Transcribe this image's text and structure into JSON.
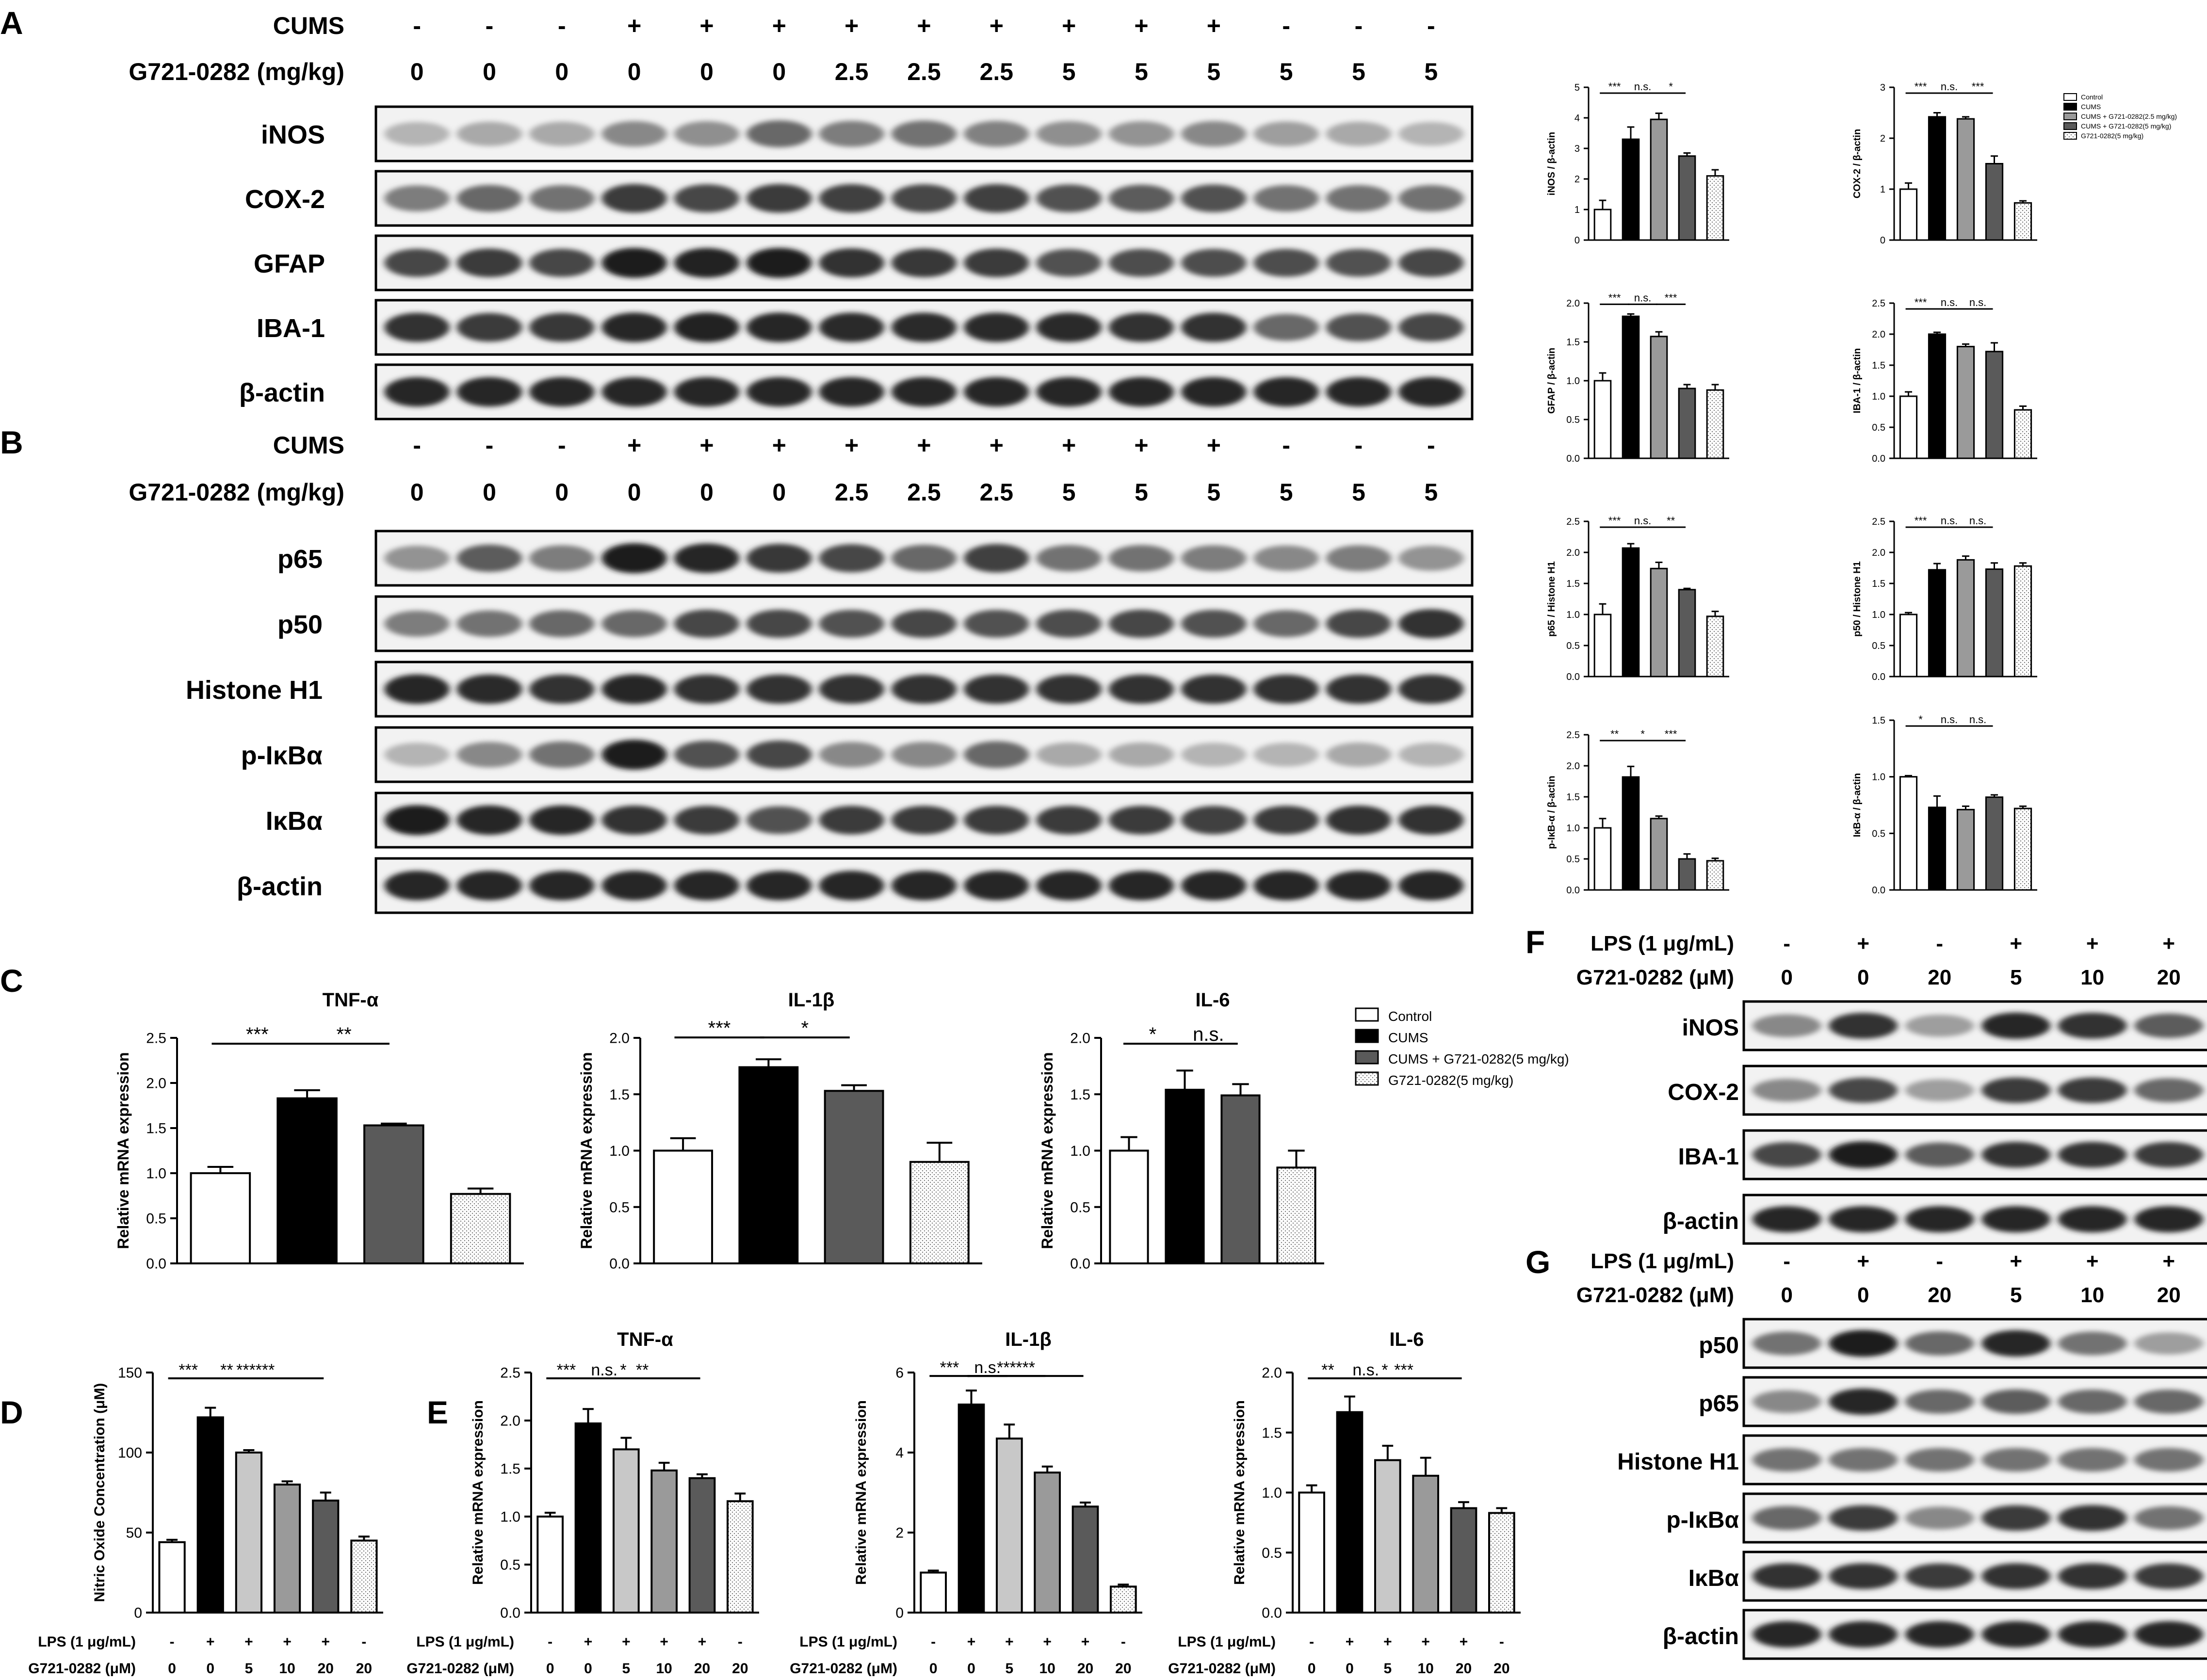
{
  "legend_main": [
    "Control",
    "CUMS",
    "CUMS + G721-0282(2.5 mg/kg)",
    "CUMS + G721-0282(5 mg/kg)",
    "G721-0282(5 mg/kg)"
  ],
  "legend_c": [
    "Control",
    "CUMS",
    "CUMS + G721-0282(5 mg/kg)",
    "G721-0282(5 mg/kg)"
  ],
  "colors": {
    "control": "#ffffff",
    "cums": "#000000",
    "g25": "#9a9a9a",
    "g5": "#5a5a5a",
    "drug": "#f0f0f0",
    "lps": "#c8c8c8"
  },
  "panels": {
    "A": {
      "letter": "A",
      "row_labels": [
        "CUMS",
        "G721-0282 (mg/kg)"
      ],
      "cums": [
        "-",
        "-",
        "-",
        "+",
        "+",
        "+",
        "+",
        "+",
        "+",
        "+",
        "+",
        "+",
        "-",
        "-",
        "-"
      ],
      "dose": [
        "0",
        "0",
        "0",
        "0",
        "0",
        "0",
        "2.5",
        "2.5",
        "2.5",
        "5",
        "5",
        "5",
        "5",
        "5",
        "5"
      ],
      "blots": [
        {
          "label": "iNOS",
          "bands": [
            0.25,
            0.3,
            0.3,
            0.45,
            0.42,
            0.6,
            0.5,
            0.55,
            0.48,
            0.42,
            0.4,
            0.45,
            0.35,
            0.3,
            0.25
          ]
        },
        {
          "label": "COX-2",
          "bands": [
            0.5,
            0.6,
            0.55,
            0.8,
            0.75,
            0.8,
            0.78,
            0.75,
            0.78,
            0.7,
            0.65,
            0.7,
            0.55,
            0.55,
            0.55
          ]
        },
        {
          "label": "GFAP",
          "bands": [
            0.75,
            0.8,
            0.75,
            0.95,
            0.92,
            0.95,
            0.85,
            0.82,
            0.8,
            0.7,
            0.72,
            0.72,
            0.72,
            0.7,
            0.75
          ]
        },
        {
          "label": "IBA-1",
          "bands": [
            0.85,
            0.8,
            0.82,
            0.9,
            0.92,
            0.9,
            0.88,
            0.88,
            0.88,
            0.88,
            0.85,
            0.85,
            0.6,
            0.7,
            0.75
          ]
        },
        {
          "label": "β-actin",
          "bands": [
            0.9,
            0.9,
            0.9,
            0.9,
            0.9,
            0.9,
            0.9,
            0.9,
            0.9,
            0.9,
            0.9,
            0.9,
            0.9,
            0.9,
            0.9
          ]
        }
      ]
    },
    "B": {
      "letter": "B",
      "row_labels": [
        "CUMS",
        "G721-0282 (mg/kg)"
      ],
      "cums": [
        "-",
        "-",
        "-",
        "+",
        "+",
        "+",
        "+",
        "+",
        "+",
        "+",
        "+",
        "+",
        "-",
        "-",
        "-"
      ],
      "dose": [
        "0",
        "0",
        "0",
        "0",
        "0",
        "0",
        "2.5",
        "2.5",
        "2.5",
        "5",
        "5",
        "5",
        "5",
        "5",
        "5"
      ],
      "blots": [
        {
          "label": "p65",
          "bands": [
            0.4,
            0.65,
            0.5,
            0.95,
            0.9,
            0.82,
            0.75,
            0.6,
            0.78,
            0.55,
            0.55,
            0.5,
            0.45,
            0.5,
            0.4
          ]
        },
        {
          "label": "p50",
          "bands": [
            0.5,
            0.55,
            0.6,
            0.6,
            0.75,
            0.75,
            0.7,
            0.75,
            0.7,
            0.72,
            0.75,
            0.7,
            0.6,
            0.75,
            0.85
          ]
        },
        {
          "label": "Histone H1",
          "bands": [
            0.9,
            0.88,
            0.85,
            0.9,
            0.85,
            0.85,
            0.85,
            0.85,
            0.85,
            0.85,
            0.85,
            0.85,
            0.85,
            0.85,
            0.85
          ]
        },
        {
          "label": "p-IκBα",
          "bands": [
            0.25,
            0.45,
            0.55,
            0.95,
            0.7,
            0.75,
            0.45,
            0.45,
            0.6,
            0.3,
            0.3,
            0.25,
            0.25,
            0.3,
            0.25
          ]
        },
        {
          "label": "IκBα",
          "bands": [
            0.95,
            0.9,
            0.9,
            0.85,
            0.8,
            0.7,
            0.8,
            0.8,
            0.8,
            0.8,
            0.8,
            0.78,
            0.8,
            0.85,
            0.85
          ]
        },
        {
          "label": "β-actin",
          "bands": [
            0.9,
            0.9,
            0.9,
            0.9,
            0.9,
            0.9,
            0.9,
            0.9,
            0.9,
            0.9,
            0.9,
            0.9,
            0.9,
            0.9,
            0.9
          ]
        }
      ]
    },
    "F": {
      "letter": "F",
      "row_labels": [
        "LPS (1 μg/mL)",
        "G721-0282 (μM)"
      ],
      "lps": [
        "-",
        "+",
        "-",
        "+",
        "+",
        "+"
      ],
      "dose": [
        "0",
        "0",
        "20",
        "5",
        "10",
        "20"
      ],
      "blots": [
        {
          "label": "iNOS",
          "bands": [
            0.45,
            0.85,
            0.35,
            0.9,
            0.85,
            0.65
          ]
        },
        {
          "label": "COX-2",
          "bands": [
            0.45,
            0.75,
            0.35,
            0.8,
            0.8,
            0.6
          ]
        },
        {
          "label": "IBA-1",
          "bands": [
            0.75,
            0.95,
            0.65,
            0.85,
            0.85,
            0.8
          ]
        },
        {
          "label": "β-actin",
          "bands": [
            0.9,
            0.9,
            0.9,
            0.9,
            0.9,
            0.9
          ]
        }
      ]
    },
    "G": {
      "letter": "G",
      "row_labels": [
        "LPS (1 μg/mL)",
        "G721-0282 (μM)"
      ],
      "lps": [
        "-",
        "+",
        "-",
        "+",
        "+",
        "+"
      ],
      "dose": [
        "0",
        "0",
        "20",
        "5",
        "10",
        "20"
      ],
      "blots": [
        {
          "label": "p50",
          "bands": [
            0.55,
            0.95,
            0.6,
            0.9,
            0.55,
            0.35
          ]
        },
        {
          "label": "p65",
          "bands": [
            0.45,
            0.9,
            0.6,
            0.65,
            0.6,
            0.6
          ]
        },
        {
          "label": "Histone H1",
          "bands": [
            0.55,
            0.55,
            0.55,
            0.55,
            0.55,
            0.55
          ]
        },
        {
          "label": "p-IκBα",
          "bands": [
            0.6,
            0.8,
            0.45,
            0.8,
            0.85,
            0.55
          ]
        },
        {
          "label": "IκBα",
          "bands": [
            0.85,
            0.85,
            0.8,
            0.85,
            0.85,
            0.8
          ]
        },
        {
          "label": "β-actin",
          "bands": [
            0.9,
            0.9,
            0.9,
            0.9,
            0.9,
            0.9
          ]
        }
      ]
    },
    "C_letter": "C",
    "D_letter": "D",
    "E_letter": "E",
    "lps_axis": {
      "lps_label": "LPS (1 μg/mL)",
      "dose_label": "G721-0282 (μM)",
      "lps": [
        "-",
        "+",
        "+",
        "+",
        "+",
        "-"
      ],
      "dose": [
        "0",
        "0",
        "5",
        "10",
        "20",
        "20"
      ]
    }
  },
  "chart_data": [
    {
      "id": "A-iNOS",
      "type": "bar",
      "ylabel": "iNOS / β-actin",
      "ylim": [
        0,
        5
      ],
      "ticks": [
        0,
        1,
        2,
        3,
        4,
        5
      ],
      "values": [
        1.0,
        3.3,
        3.95,
        2.75,
        2.1
      ],
      "errors": [
        0.3,
        0.4,
        0.2,
        0.1,
        0.2
      ],
      "sig": [
        {
          "a": 0,
          "b": 1,
          "t": "***"
        },
        {
          "a": 1,
          "b": 2,
          "t": "n.s."
        },
        {
          "a": 2,
          "b": 3,
          "t": "*"
        }
      ]
    },
    {
      "id": "A-COX2",
      "type": "bar",
      "ylabel": "COX-2 / β-actin",
      "ylim": [
        0,
        3
      ],
      "ticks": [
        0,
        1,
        2,
        3
      ],
      "values": [
        1.0,
        2.42,
        2.38,
        1.5,
        0.73
      ],
      "errors": [
        0.12,
        0.08,
        0.04,
        0.15,
        0.04
      ],
      "sig": [
        {
          "a": 0,
          "b": 1,
          "t": "***"
        },
        {
          "a": 1,
          "b": 2,
          "t": "n.s."
        },
        {
          "a": 2,
          "b": 3,
          "t": "***"
        }
      ]
    },
    {
      "id": "A-GFAP",
      "type": "bar",
      "ylabel": "GFAP / β-actin",
      "ylim": [
        0,
        2
      ],
      "ticks": [
        0,
        0.5,
        1,
        1.5,
        2
      ],
      "values": [
        1.0,
        1.83,
        1.57,
        0.9,
        0.88
      ],
      "errors": [
        0.1,
        0.03,
        0.06,
        0.05,
        0.07
      ],
      "sig": [
        {
          "a": 0,
          "b": 1,
          "t": "***"
        },
        {
          "a": 1,
          "b": 2,
          "t": "n.s."
        },
        {
          "a": 2,
          "b": 3,
          "t": "***"
        }
      ]
    },
    {
      "id": "A-IBA1",
      "type": "bar",
      "ylabel": "IBA-1 / β-actin",
      "ylim": [
        0,
        2.5
      ],
      "ticks": [
        0,
        0.5,
        1,
        1.5,
        2,
        2.5
      ],
      "values": [
        1.0,
        2.0,
        1.8,
        1.72,
        0.78
      ],
      "errors": [
        0.07,
        0.03,
        0.04,
        0.14,
        0.06
      ],
      "sig": [
        {
          "a": 0,
          "b": 1,
          "t": "***"
        },
        {
          "a": 1,
          "b": 2,
          "t": "n.s."
        },
        {
          "a": 2,
          "b": 3,
          "t": "n.s."
        }
      ]
    },
    {
      "id": "B-p65",
      "type": "bar",
      "ylabel": "p65 / Histone H1",
      "ylim": [
        0,
        2.5
      ],
      "ticks": [
        0,
        0.5,
        1,
        1.5,
        2,
        2.5
      ],
      "values": [
        1.0,
        2.07,
        1.74,
        1.4,
        0.97
      ],
      "errors": [
        0.17,
        0.07,
        0.1,
        0.02,
        0.08
      ],
      "sig": [
        {
          "a": 0,
          "b": 1,
          "t": "***"
        },
        {
          "a": 1,
          "b": 2,
          "t": "n.s."
        },
        {
          "a": 2,
          "b": 3,
          "t": "**"
        }
      ]
    },
    {
      "id": "B-p50",
      "type": "bar",
      "ylabel": "p50 / Histone H1",
      "ylim": [
        0,
        2.5
      ],
      "ticks": [
        0,
        0.5,
        1,
        1.5,
        2,
        2.5
      ],
      "values": [
        1.0,
        1.72,
        1.88,
        1.73,
        1.78
      ],
      "errors": [
        0.03,
        0.1,
        0.06,
        0.1,
        0.05
      ],
      "sig": [
        {
          "a": 0,
          "b": 1,
          "t": "***"
        },
        {
          "a": 1,
          "b": 2,
          "t": "n.s."
        },
        {
          "a": 2,
          "b": 3,
          "t": "n.s."
        }
      ]
    },
    {
      "id": "B-pIkBa",
      "type": "bar",
      "ylabel": "p-IκB-α / β-actin",
      "ylim": [
        0,
        2.5
      ],
      "ticks": [
        0,
        0.5,
        1,
        1.5,
        2,
        2.5
      ],
      "values": [
        1.0,
        1.82,
        1.15,
        0.5,
        0.47
      ],
      "errors": [
        0.15,
        0.17,
        0.04,
        0.08,
        0.04
      ],
      "sig": [
        {
          "a": 0,
          "b": 1,
          "t": "**"
        },
        {
          "a": 1,
          "b": 2,
          "t": "*"
        },
        {
          "a": 2,
          "b": 3,
          "t": "***"
        }
      ]
    },
    {
      "id": "B-IkBa",
      "type": "bar",
      "ylabel": "IκB-α / β-actin",
      "ylim": [
        0,
        1.5
      ],
      "ticks": [
        0,
        0.5,
        1,
        1.5
      ],
      "values": [
        1.0,
        0.73,
        0.71,
        0.82,
        0.72
      ],
      "errors": [
        0.01,
        0.1,
        0.03,
        0.02,
        0.02
      ],
      "sig": [
        {
          "a": 0,
          "b": 1,
          "t": "*"
        },
        {
          "a": 1,
          "b": 2,
          "t": "n.s."
        },
        {
          "a": 2,
          "b": 3,
          "t": "n.s."
        }
      ]
    },
    {
      "id": "C-TNF",
      "type": "bar",
      "title": "TNF-α",
      "ylabel": "Relative mRNA expression",
      "ylim": [
        0,
        2.5
      ],
      "ticks": [
        0,
        0.5,
        1,
        1.5,
        2,
        2.5
      ],
      "values": [
        1.0,
        1.83,
        1.53,
        0.77
      ],
      "errors": [
        0.07,
        0.09,
        0.02,
        0.06
      ],
      "sig": [
        {
          "a": 0,
          "b": 1,
          "t": "***"
        },
        {
          "a": 1,
          "b": 2,
          "t": "**"
        }
      ]
    },
    {
      "id": "C-IL1b",
      "type": "bar",
      "title": "IL-1β",
      "ylabel": "Relative mRNA expression",
      "ylim": [
        0,
        2
      ],
      "ticks": [
        0,
        0.5,
        1,
        1.5,
        2
      ],
      "values": [
        1.0,
        1.74,
        1.53,
        0.9
      ],
      "errors": [
        0.11,
        0.07,
        0.05,
        0.17
      ],
      "sig": [
        {
          "a": 0,
          "b": 1,
          "t": "***"
        },
        {
          "a": 1,
          "b": 2,
          "t": "*"
        }
      ]
    },
    {
      "id": "C-IL6",
      "type": "bar",
      "title": "IL-6",
      "ylabel": "Relative mRNA expression",
      "ylim": [
        0,
        2
      ],
      "ticks": [
        0,
        0.5,
        1,
        1.5,
        2
      ],
      "values": [
        1.0,
        1.54,
        1.49,
        0.85
      ],
      "errors": [
        0.12,
        0.17,
        0.1,
        0.15
      ],
      "sig": [
        {
          "a": 0,
          "b": 1,
          "t": "*"
        },
        {
          "a": 1,
          "b": 2,
          "t": "n.s."
        }
      ]
    },
    {
      "id": "D-NO",
      "type": "bar",
      "ylabel": "Nitric Oxide Concentration (μM)",
      "ylim": [
        0,
        150
      ],
      "ticks": [
        0,
        50,
        100,
        150
      ],
      "values": [
        44,
        122,
        100,
        80,
        70,
        45
      ],
      "errors": [
        1.5,
        6,
        1.5,
        2,
        5,
        2.5
      ],
      "sig": [
        {
          "a": 0,
          "b": 1,
          "t": "***"
        },
        {
          "a": 1,
          "b": 2,
          "t": "**"
        },
        {
          "a": 1,
          "b": 3,
          "t": "***"
        },
        {
          "a": 1,
          "b": 4,
          "t": "***"
        }
      ]
    },
    {
      "id": "E-TNF",
      "type": "bar",
      "title": "TNF-α",
      "ylabel": "Relative mRNA expression",
      "ylim": [
        0,
        2.5
      ],
      "ticks": [
        0,
        0.5,
        1,
        1.5,
        2,
        2.5
      ],
      "values": [
        1.0,
        1.97,
        1.7,
        1.48,
        1.4
      ],
      "errors": [
        0.04,
        0.15,
        0.12,
        0.08,
        0.04
      ],
      "extra": [
        1.16,
        0.08
      ],
      "sig": [
        {
          "a": 0,
          "b": 1,
          "t": "***"
        },
        {
          "a": 1,
          "b": 2,
          "t": "n.s."
        },
        {
          "a": 1,
          "b": 3,
          "t": "*"
        },
        {
          "a": 1,
          "b": 4,
          "t": "**"
        }
      ]
    },
    {
      "id": "E-IL1b",
      "type": "bar",
      "title": "IL-1β",
      "ylabel": "Relative mRNA expression",
      "ylim": [
        0,
        6
      ],
      "ticks": [
        0,
        2,
        4,
        6
      ],
      "values": [
        1.0,
        5.2,
        4.35,
        3.5,
        2.65
      ],
      "errors": [
        0.05,
        0.35,
        0.35,
        0.15,
        0.1
      ],
      "extra": [
        0.65,
        0.05
      ],
      "sig": [
        {
          "a": 0,
          "b": 1,
          "t": "***"
        },
        {
          "a": 1,
          "b": 2,
          "t": "n.s."
        },
        {
          "a": 1,
          "b": 3,
          "t": "***"
        },
        {
          "a": 1,
          "b": 4,
          "t": "***"
        }
      ]
    },
    {
      "id": "E-IL6",
      "type": "bar",
      "title": "IL-6",
      "ylabel": "Relative mRNA expression",
      "ylim": [
        0,
        2
      ],
      "ticks": [
        0,
        0.5,
        1,
        1.5,
        2
      ],
      "values": [
        1.0,
        1.67,
        1.27,
        1.14,
        0.87
      ],
      "errors": [
        0.06,
        0.13,
        0.12,
        0.15,
        0.05
      ],
      "extra": [
        0.83,
        0.04
      ],
      "sig": [
        {
          "a": 0,
          "b": 1,
          "t": "**"
        },
        {
          "a": 1,
          "b": 2,
          "t": "n.s."
        },
        {
          "a": 1,
          "b": 3,
          "t": "*"
        },
        {
          "a": 1,
          "b": 4,
          "t": "***"
        }
      ]
    }
  ]
}
